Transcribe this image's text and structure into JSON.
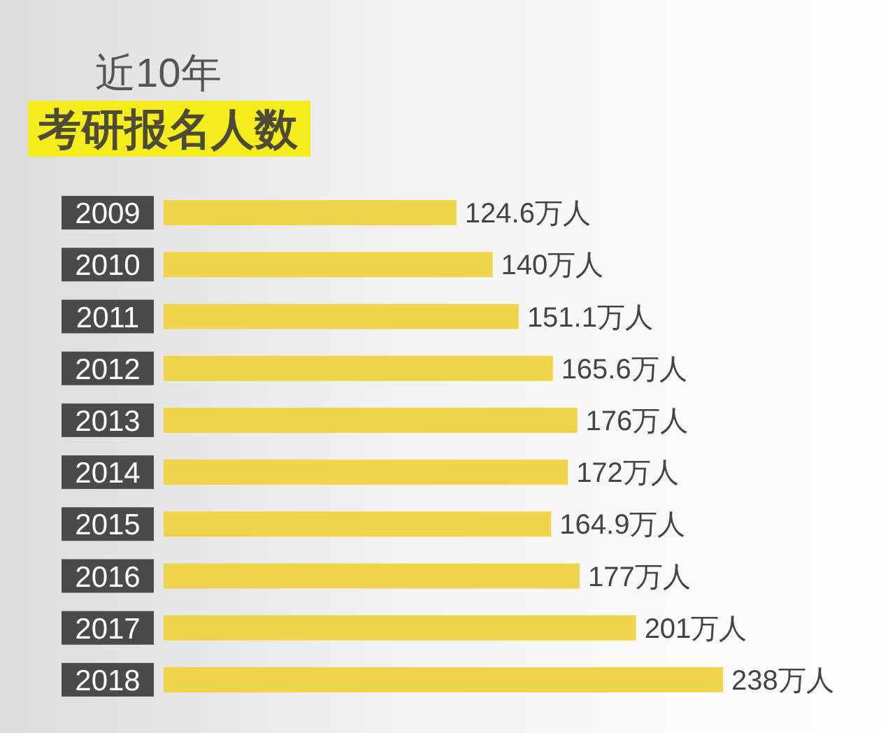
{
  "chart_data": {
    "type": "bar",
    "orientation": "horizontal",
    "title": "近10年",
    "subtitle": "考研报名人数",
    "categories": [
      "2009",
      "2010",
      "2011",
      "2012",
      "2013",
      "2014",
      "2015",
      "2016",
      "2017",
      "2018"
    ],
    "values": [
      124.6,
      140,
      151.1,
      165.6,
      176,
      172,
      164.9,
      177,
      201,
      238
    ],
    "color": "#f0d44a",
    "value_labels": [
      "124.6万人",
      "140万人",
      "151.1万人",
      "165.6万人",
      "176万人",
      "172万人",
      "164.9万人",
      "177万人",
      "201万人",
      "238万人"
    ]
  }
}
